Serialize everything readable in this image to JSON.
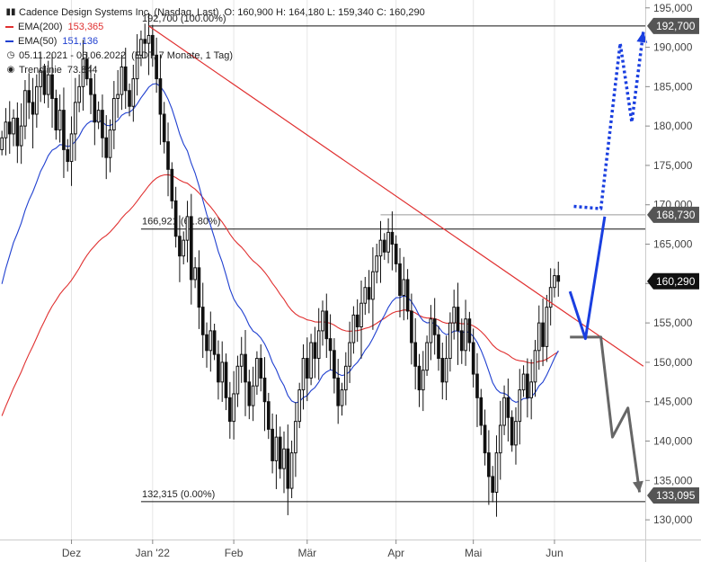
{
  "header": {
    "title": "Cadence Design Systems Inc. (Nasdaq, Last)",
    "ohlc": "O: 160,900   H: 164,180   L: 159,340   C: 160,290",
    "period": "05.11.2021 - 06.06.2022",
    "period_note": "(EDT, 7 Monate, 1 Tag)"
  },
  "legend": [
    {
      "label": "EMA(200)",
      "value": "153,365",
      "color": "#e03030"
    },
    {
      "label": "EMA(50)",
      "value": "151,136",
      "color": "#2040d0"
    },
    {
      "label": "Trendlinie",
      "value": "73.844",
      "color": "#555555"
    }
  ],
  "chart_data": {
    "type": "candlestick",
    "ylim": [
      127500,
      196000
    ],
    "y_ticks": [
      130000,
      135000,
      140000,
      145000,
      150000,
      155000,
      160000,
      165000,
      170000,
      175000,
      180000,
      185000,
      190000,
      195000
    ],
    "y_tick_labels": [
      "130,000",
      "135,000",
      "140,000",
      "145,000",
      "150,000",
      "155,000",
      "160,000",
      "165,000",
      "170,000",
      "175,000",
      "180,000",
      "185,000",
      "190,000",
      "195,000"
    ],
    "x_labels": [
      {
        "label": "Dez",
        "index": 18
      },
      {
        "label": "Jan '22",
        "index": 39
      },
      {
        "label": "Feb",
        "index": 60
      },
      {
        "label": "Mär",
        "index": 79
      },
      {
        "label": "Apr",
        "index": 102
      },
      {
        "label": "Mai",
        "index": 122
      },
      {
        "label": "Jun",
        "index": 143
      }
    ],
    "n_slots": 167,
    "closes": [
      178500,
      180500,
      179000,
      181000,
      177500,
      180000,
      184500,
      183000,
      181500,
      185000,
      187000,
      184000,
      186500,
      183500,
      179500,
      182000,
      177000,
      175500,
      179000,
      183000,
      185000,
      188500,
      186000,
      184000,
      180500,
      182000,
      178500,
      176000,
      179500,
      183500,
      184000,
      187500,
      184500,
      182500,
      186000,
      189000,
      191000,
      190500,
      191500,
      189000,
      186000,
      181500,
      178000,
      174500,
      170500,
      166000,
      163500,
      165500,
      168500,
      160500,
      162000,
      157000,
      153500,
      151500,
      154000,
      151000,
      147500,
      150000,
      145500,
      142500,
      146000,
      149500,
      151000,
      147500,
      144500,
      147000,
      150500,
      148000,
      145000,
      141500,
      137500,
      140500,
      136500,
      139000,
      134000,
      138500,
      142500,
      146500,
      150500,
      148000,
      152500,
      150500,
      154000,
      156500,
      153000,
      151500,
      148000,
      144500,
      146500,
      149500,
      152500,
      156000,
      154500,
      157500,
      159500,
      158000,
      161500,
      163500,
      165500,
      164000,
      166500,
      165000,
      162500,
      158500,
      160500,
      156500,
      152500,
      149500,
      146500,
      149000,
      152500,
      155500,
      153500,
      150500,
      147500,
      150500,
      155000,
      157000,
      154000,
      151500,
      155500,
      152500,
      148500,
      145500,
      142000,
      138500,
      135500,
      133500,
      138500,
      142000,
      145500,
      143000,
      139500,
      142500,
      146500,
      148500,
      145500,
      147500,
      151500,
      155000,
      152000,
      157000,
      159500,
      161000,
      160290
    ],
    "levels": [
      {
        "label": "192,700 (100.00%)",
        "value": 192700
      },
      {
        "label": "166,921 (61.80%)",
        "value": 166921
      },
      {
        "label": "132,315 (0.00%)",
        "value": 132315
      }
    ],
    "price_tags": [
      {
        "value": 192700,
        "label": "192,700"
      },
      {
        "value": 168730,
        "label": "168,730"
      },
      {
        "value": 160290,
        "label": "160,290"
      },
      {
        "value": 133095,
        "label": "133,095"
      }
    ],
    "trendline": {
      "from": [
        38,
        192700
      ],
      "to": [
        166,
        149500
      ],
      "color": "#e03030"
    },
    "scenario_up": {
      "color": "#1a3fe0",
      "points": [
        [
          147,
          159000
        ],
        [
          151,
          153000
        ],
        [
          156,
          168500
        ]
      ]
    },
    "scenario_up_dotted": {
      "color": "#1a3fe0",
      "points": [
        [
          148,
          169800
        ],
        [
          155,
          169500
        ],
        [
          160,
          190500
        ],
        [
          163,
          180500
        ],
        [
          166,
          192000
        ]
      ]
    },
    "scenario_down": {
      "color": "#666666",
      "points": [
        [
          147,
          153200
        ],
        [
          155,
          153200
        ],
        [
          158,
          140500
        ],
        [
          162,
          144200
        ],
        [
          165,
          133500
        ]
      ]
    },
    "colors": {
      "ema200": "#e03030",
      "ema50": "#2040d0",
      "candle": "#111111",
      "tag_bg": "#555555",
      "tag_current": "#111111"
    }
  }
}
